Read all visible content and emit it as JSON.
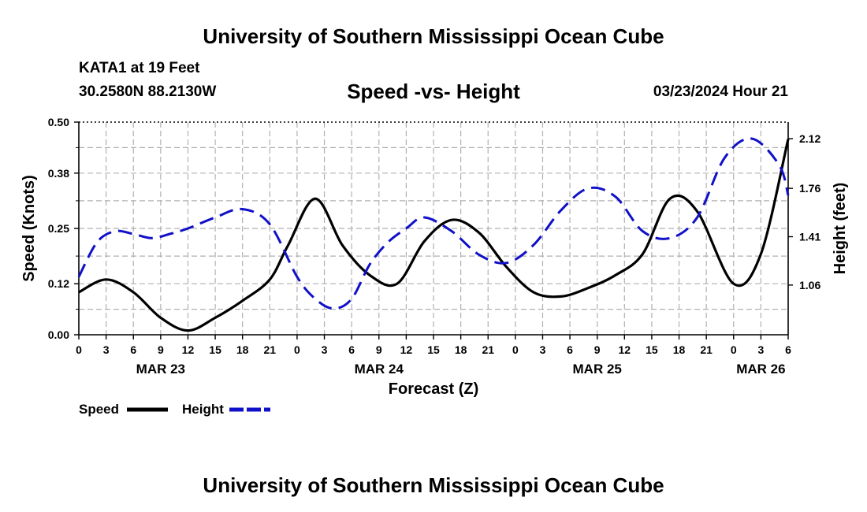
{
  "header": {
    "title": "University of Southern Mississippi Ocean Cube",
    "station": "KATA1 at 19 Feet",
    "coords": "30.2580N  88.2130W",
    "subtitle": "Speed -vs- Height",
    "datetime": "03/23/2024 Hour 21"
  },
  "footer": {
    "title": "University of Southern Mississippi Ocean Cube"
  },
  "chart_data": {
    "type": "line",
    "title": "Speed -vs- Height",
    "xlabel": "Forecast (Z)",
    "ylabel_left": "Speed (Knots)",
    "ylabel_right": "Height (feet)",
    "x_range_hours": [
      0,
      78
    ],
    "x_ticks": [
      "0",
      "3",
      "6",
      "9",
      "12",
      "15",
      "18",
      "21",
      "0",
      "3",
      "6",
      "9",
      "12",
      "15",
      "18",
      "21",
      "0",
      "3",
      "6",
      "9",
      "12",
      "15",
      "18",
      "21",
      "0",
      "3",
      "6"
    ],
    "date_labels": [
      {
        "hour": 9,
        "label": "MAR 23"
      },
      {
        "hour": 33,
        "label": "MAR 24"
      },
      {
        "hour": 57,
        "label": "MAR 25"
      },
      {
        "hour": 75,
        "label": "MAR 26"
      }
    ],
    "y_left": {
      "range": [
        0,
        0.5
      ],
      "ticks": [
        "0.00",
        "0.12",
        "0.25",
        "0.38",
        "0.50"
      ]
    },
    "y_right": {
      "range": [
        0.7,
        2.24
      ],
      "ticks": [
        {
          "value": 1.06,
          "label": "1.06"
        },
        {
          "value": 1.41,
          "label": "1.41"
        },
        {
          "value": 1.76,
          "label": "1.76"
        },
        {
          "value": 2.12,
          "label": "2.12"
        }
      ]
    },
    "grid": true,
    "colors": {
      "speed": "#000000",
      "height": "#1010c8",
      "grid": "#b0b0b0"
    },
    "series": [
      {
        "name": "Speed",
        "axis": "left",
        "style": "solid",
        "x": [
          0,
          3,
          6,
          9,
          12,
          15,
          18,
          21,
          23,
          26,
          29,
          32,
          35,
          38,
          41,
          44,
          47,
          50,
          53,
          56,
          59,
          62,
          65,
          68,
          72,
          75,
          78
        ],
        "y": [
          0.1,
          0.13,
          0.1,
          0.04,
          0.01,
          0.04,
          0.08,
          0.13,
          0.21,
          0.32,
          0.21,
          0.14,
          0.12,
          0.22,
          0.27,
          0.24,
          0.16,
          0.1,
          0.09,
          0.11,
          0.14,
          0.19,
          0.32,
          0.29,
          0.12,
          0.19,
          0.46
        ]
      },
      {
        "name": "Height",
        "axis": "right",
        "style": "dashed",
        "x": [
          0,
          2,
          4,
          6,
          8,
          10,
          12,
          15,
          18,
          21,
          24,
          26,
          28,
          30,
          32,
          34,
          36,
          38,
          41,
          44,
          47,
          50,
          53,
          56,
          59,
          62,
          65,
          68,
          71,
          74,
          77,
          78
        ],
        "y": [
          1.12,
          1.37,
          1.45,
          1.43,
          1.4,
          1.43,
          1.47,
          1.55,
          1.61,
          1.5,
          1.12,
          0.96,
          0.89,
          0.96,
          1.21,
          1.37,
          1.47,
          1.55,
          1.45,
          1.28,
          1.22,
          1.35,
          1.6,
          1.76,
          1.7,
          1.45,
          1.4,
          1.55,
          1.98,
          2.12,
          1.93,
          1.71
        ]
      }
    ],
    "legend": [
      {
        "label": "Speed",
        "series": "Speed"
      },
      {
        "label": "Height",
        "series": "Height"
      }
    ]
  }
}
